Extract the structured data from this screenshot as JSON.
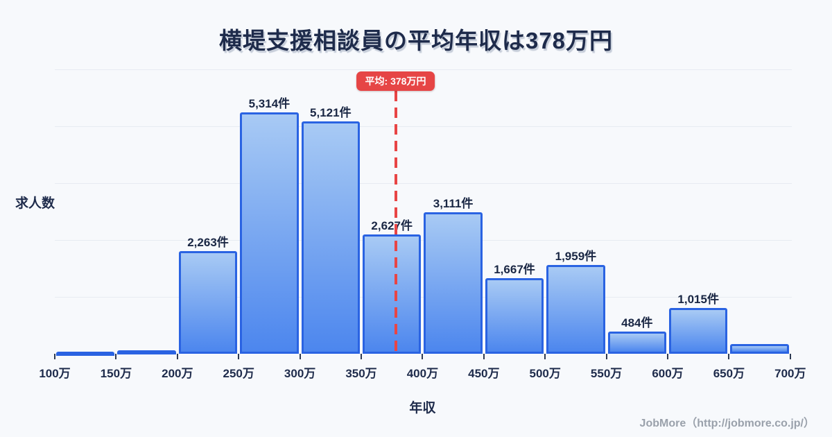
{
  "chart_data": {
    "type": "bar",
    "title": "横堤支援相談員の平均年収は378万円",
    "xlabel": "年収",
    "ylabel": "求人数",
    "x_tick_labels": [
      "100万",
      "150万",
      "200万",
      "250万",
      "300万",
      "350万",
      "400万",
      "450万",
      "500万",
      "550万",
      "600万",
      "650万",
      "700万"
    ],
    "x_range_man_yen": [
      100,
      700
    ],
    "bin_width_man_yen": 50,
    "ylim": [
      0,
      6260
    ],
    "grid": true,
    "legend": "none",
    "bars": [
      {
        "range": "100万-150万",
        "value": 30,
        "label": ""
      },
      {
        "range": "150万-200万",
        "value": 75,
        "label": ""
      },
      {
        "range": "200万-250万",
        "value": 2263,
        "label": "2,263件"
      },
      {
        "range": "250万-300万",
        "value": 5314,
        "label": "5,314件"
      },
      {
        "range": "300万-350万",
        "value": 5121,
        "label": "5,121件"
      },
      {
        "range": "350万-400万",
        "value": 2627,
        "label": "2,627件"
      },
      {
        "range": "400万-450万",
        "value": 3111,
        "label": "3,111件"
      },
      {
        "range": "450万-500万",
        "value": 1667,
        "label": "1,667件"
      },
      {
        "range": "500万-550万",
        "value": 1959,
        "label": "1,959件"
      },
      {
        "range": "550万-600万",
        "value": 484,
        "label": "484件"
      },
      {
        "range": "600万-650万",
        "value": 1015,
        "label": "1,015件"
      },
      {
        "range": "650万-700万",
        "value": 210,
        "label": ""
      }
    ],
    "average_line": {
      "value": 378,
      "label": "平均: 378万円"
    }
  },
  "footer": {
    "text": "JobMore（http://jobmore.co.jp/）"
  },
  "colors": {
    "background": "#f7f9fc",
    "title_text": "#1e2b4b",
    "value_label_text": "#1a2744",
    "bar_border": "#2a63e2",
    "bar_fill_top": "#a8caf4",
    "bar_fill_bottom": "#4c86ee",
    "gridline": "#e7ebf2",
    "average_red": "#e64545",
    "tick_mark": "#2e3a52",
    "footer_text": "#9aa1ab"
  }
}
